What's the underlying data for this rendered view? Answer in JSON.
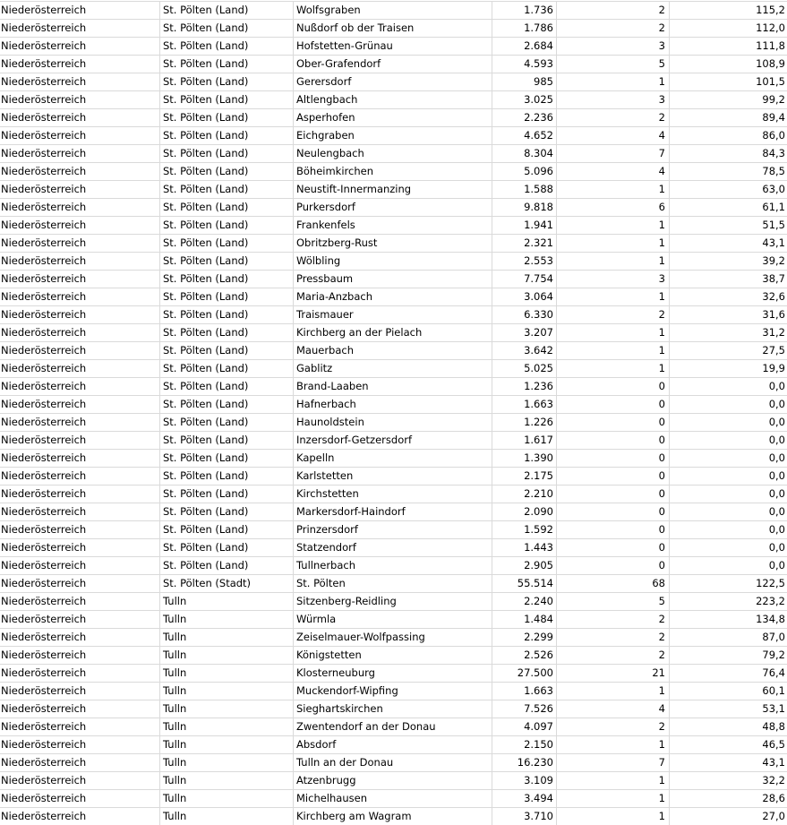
{
  "rows": [
    [
      "Niederösterreich",
      "St. Pölten (Land)",
      "Wolfsgraben",
      "1.736",
      "2",
      "115,2"
    ],
    [
      "Niederösterreich",
      "St. Pölten (Land)",
      "Nußdorf ob der Traisen",
      "1.786",
      "2",
      "112,0"
    ],
    [
      "Niederösterreich",
      "St. Pölten (Land)",
      "Hofstetten-Grünau",
      "2.684",
      "3",
      "111,8"
    ],
    [
      "Niederösterreich",
      "St. Pölten (Land)",
      "Ober-Grafendorf",
      "4.593",
      "5",
      "108,9"
    ],
    [
      "Niederösterreich",
      "St. Pölten (Land)",
      "Gerersdorf",
      "985",
      "1",
      "101,5"
    ],
    [
      "Niederösterreich",
      "St. Pölten (Land)",
      "Altlengbach",
      "3.025",
      "3",
      "99,2"
    ],
    [
      "Niederösterreich",
      "St. Pölten (Land)",
      "Asperhofen",
      "2.236",
      "2",
      "89,4"
    ],
    [
      "Niederösterreich",
      "St. Pölten (Land)",
      "Eichgraben",
      "4.652",
      "4",
      "86,0"
    ],
    [
      "Niederösterreich",
      "St. Pölten (Land)",
      "Neulengbach",
      "8.304",
      "7",
      "84,3"
    ],
    [
      "Niederösterreich",
      "St. Pölten (Land)",
      "Böheimkirchen",
      "5.096",
      "4",
      "78,5"
    ],
    [
      "Niederösterreich",
      "St. Pölten (Land)",
      "Neustift-Innermanzing",
      "1.588",
      "1",
      "63,0"
    ],
    [
      "Niederösterreich",
      "St. Pölten (Land)",
      "Purkersdorf",
      "9.818",
      "6",
      "61,1"
    ],
    [
      "Niederösterreich",
      "St. Pölten (Land)",
      "Frankenfels",
      "1.941",
      "1",
      "51,5"
    ],
    [
      "Niederösterreich",
      "St. Pölten (Land)",
      "Obritzberg-Rust",
      "2.321",
      "1",
      "43,1"
    ],
    [
      "Niederösterreich",
      "St. Pölten (Land)",
      "Wölbling",
      "2.553",
      "1",
      "39,2"
    ],
    [
      "Niederösterreich",
      "St. Pölten (Land)",
      "Pressbaum",
      "7.754",
      "3",
      "38,7"
    ],
    [
      "Niederösterreich",
      "St. Pölten (Land)",
      "Maria-Anzbach",
      "3.064",
      "1",
      "32,6"
    ],
    [
      "Niederösterreich",
      "St. Pölten (Land)",
      "Traismauer",
      "6.330",
      "2",
      "31,6"
    ],
    [
      "Niederösterreich",
      "St. Pölten (Land)",
      "Kirchberg an der Pielach",
      "3.207",
      "1",
      "31,2"
    ],
    [
      "Niederösterreich",
      "St. Pölten (Land)",
      "Mauerbach",
      "3.642",
      "1",
      "27,5"
    ],
    [
      "Niederösterreich",
      "St. Pölten (Land)",
      "Gablitz",
      "5.025",
      "1",
      "19,9"
    ],
    [
      "Niederösterreich",
      "St. Pölten (Land)",
      "Brand-Laaben",
      "1.236",
      "0",
      "0,0"
    ],
    [
      "Niederösterreich",
      "St. Pölten (Land)",
      "Hafnerbach",
      "1.663",
      "0",
      "0,0"
    ],
    [
      "Niederösterreich",
      "St. Pölten (Land)",
      "Haunoldstein",
      "1.226",
      "0",
      "0,0"
    ],
    [
      "Niederösterreich",
      "St. Pölten (Land)",
      "Inzersdorf-Getzersdorf",
      "1.617",
      "0",
      "0,0"
    ],
    [
      "Niederösterreich",
      "St. Pölten (Land)",
      "Kapelln",
      "1.390",
      "0",
      "0,0"
    ],
    [
      "Niederösterreich",
      "St. Pölten (Land)",
      "Karlstetten",
      "2.175",
      "0",
      "0,0"
    ],
    [
      "Niederösterreich",
      "St. Pölten (Land)",
      "Kirchstetten",
      "2.210",
      "0",
      "0,0"
    ],
    [
      "Niederösterreich",
      "St. Pölten (Land)",
      "Markersdorf-Haindorf",
      "2.090",
      "0",
      "0,0"
    ],
    [
      "Niederösterreich",
      "St. Pölten (Land)",
      "Prinzersdorf",
      "1.592",
      "0",
      "0,0"
    ],
    [
      "Niederösterreich",
      "St. Pölten (Land)",
      "Statzendorf",
      "1.443",
      "0",
      "0,0"
    ],
    [
      "Niederösterreich",
      "St. Pölten (Land)",
      "Tullnerbach",
      "2.905",
      "0",
      "0,0"
    ],
    [
      "Niederösterreich",
      "St. Pölten (Stadt)",
      "St. Pölten",
      "55.514",
      "68",
      "122,5"
    ],
    [
      "Niederösterreich",
      "Tulln",
      "Sitzenberg-Reidling",
      "2.240",
      "5",
      "223,2"
    ],
    [
      "Niederösterreich",
      "Tulln",
      "Würmla",
      "1.484",
      "2",
      "134,8"
    ],
    [
      "Niederösterreich",
      "Tulln",
      "Zeiselmauer-Wolfpassing",
      "2.299",
      "2",
      "87,0"
    ],
    [
      "Niederösterreich",
      "Tulln",
      "Königstetten",
      "2.526",
      "2",
      "79,2"
    ],
    [
      "Niederösterreich",
      "Tulln",
      "Klosterneuburg",
      "27.500",
      "21",
      "76,4"
    ],
    [
      "Niederösterreich",
      "Tulln",
      "Muckendorf-Wipfing",
      "1.663",
      "1",
      "60,1"
    ],
    [
      "Niederösterreich",
      "Tulln",
      "Sieghartskirchen",
      "7.526",
      "4",
      "53,1"
    ],
    [
      "Niederösterreich",
      "Tulln",
      "Zwentendorf an der Donau",
      "4.097",
      "2",
      "48,8"
    ],
    [
      "Niederösterreich",
      "Tulln",
      "Absdorf",
      "2.150",
      "1",
      "46,5"
    ],
    [
      "Niederösterreich",
      "Tulln",
      "Tulln an der Donau",
      "16.230",
      "7",
      "43,1"
    ],
    [
      "Niederösterreich",
      "Tulln",
      "Atzenbrugg",
      "3.109",
      "1",
      "32,2"
    ],
    [
      "Niederösterreich",
      "Tulln",
      "Michelhausen",
      "3.494",
      "1",
      "28,6"
    ],
    [
      "Niederösterreich",
      "Tulln",
      "Kirchberg am Wagram",
      "3.710",
      "1",
      "27,0"
    ]
  ]
}
